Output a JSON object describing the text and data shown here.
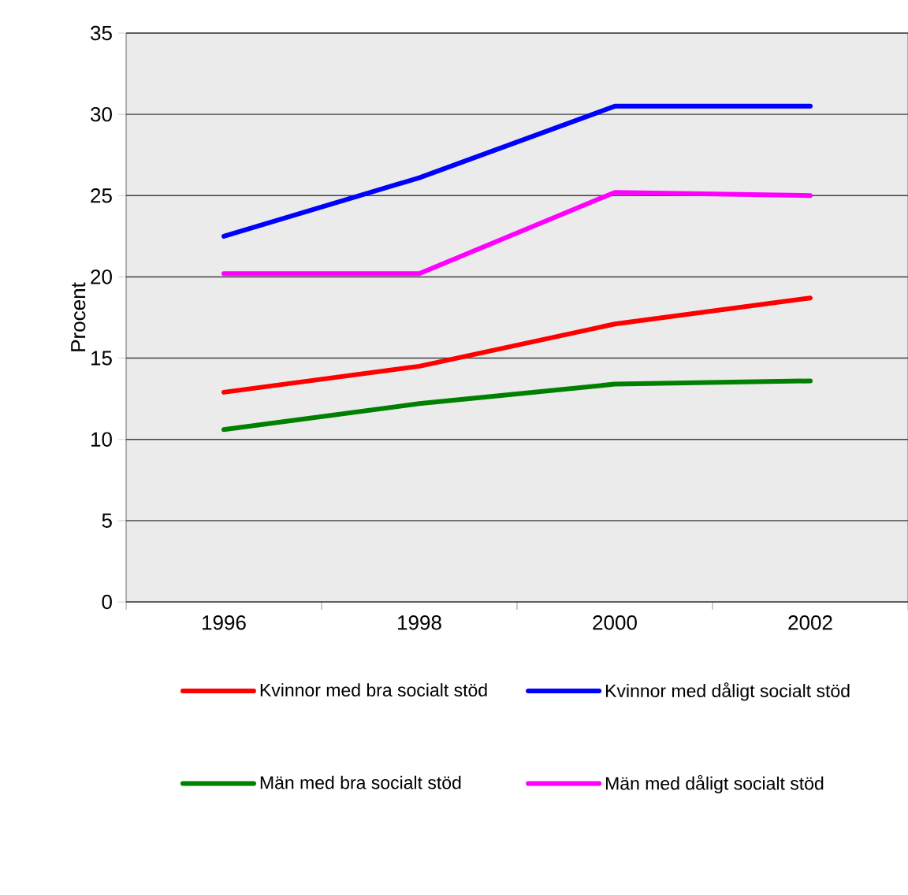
{
  "chart_data": {
    "type": "line",
    "ylabel": "Procent",
    "categories": [
      "1996",
      "1998",
      "2000",
      "2002"
    ],
    "series": [
      {
        "name": "Kvinnor med bra socialt stöd",
        "color": "#ff0000",
        "values": [
          12.9,
          14.5,
          17.1,
          18.7
        ]
      },
      {
        "name": "Kvinnor med dåligt socialt stöd",
        "color": "#0000ff",
        "values": [
          22.5,
          26.1,
          30.5,
          30.5
        ]
      },
      {
        "name": "Män med bra socialt stöd",
        "color": "#008000",
        "values": [
          10.6,
          12.2,
          13.4,
          13.6
        ]
      },
      {
        "name": "Män med dåligt socialt stöd",
        "color": "#ff00ff",
        "values": [
          20.2,
          20.2,
          25.2,
          25.0
        ]
      }
    ],
    "ylim": [
      0,
      35
    ],
    "yticks": [
      0,
      5,
      10,
      15,
      20,
      25,
      30,
      35
    ],
    "grid": "y",
    "legend": "bottom",
    "marker": "none",
    "line_style": "solid"
  }
}
